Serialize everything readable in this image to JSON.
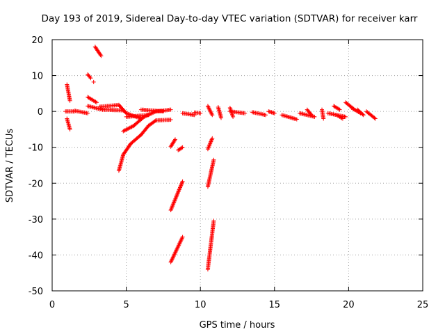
{
  "chart_data": {
    "type": "scatter",
    "title": "Day 193 of 2019, Sidereal Day-to-day VTEC variation (SDTVAR) for receiver karr",
    "xlabel": "GPS time / hours",
    "ylabel": "SDTVAR / TECUs",
    "xlim": [
      0,
      25
    ],
    "ylim": [
      -50,
      20
    ],
    "xticks": [
      0,
      5,
      10,
      15,
      20,
      25
    ],
    "yticks": [
      20,
      10,
      0,
      -10,
      -20,
      -30,
      -40,
      -50
    ],
    "xtick_labels": [
      "0",
      "5",
      "10",
      "15",
      "20",
      "25"
    ],
    "ytick_labels": [
      "20",
      "10",
      "0",
      "-10",
      "-20",
      "-30",
      "-40",
      "-50"
    ],
    "grid": true,
    "legend": "none",
    "marker": "plus",
    "color": "#ff0000",
    "segments": [
      {
        "x": [
          1.0,
          1.2
        ],
        "y": [
          7.5,
          3.0
        ]
      },
      {
        "x": [
          1.0,
          1.2
        ],
        "y": [
          -2.0,
          -5.0
        ]
      },
      {
        "x": [
          0.9,
          1.5
        ],
        "y": [
          0.0,
          0.0
        ]
      },
      {
        "x": [
          1.5,
          2.4
        ],
        "y": [
          0.2,
          -0.5
        ]
      },
      {
        "x": [
          2.4,
          2.6
        ],
        "y": [
          10.3,
          9.3
        ]
      },
      {
        "x": [
          2.8,
          2.8
        ],
        "y": [
          8.2,
          8.2
        ]
      },
      {
        "x": [
          2.9,
          3.3
        ],
        "y": [
          18.0,
          15.5
        ]
      },
      {
        "x": [
          2.4,
          3.0
        ],
        "y": [
          4.0,
          2.5
        ]
      },
      {
        "x": [
          2.4,
          3.4
        ],
        "y": [
          1.5,
          0.5
        ]
      },
      {
        "x": [
          3.2,
          4.5
        ],
        "y": [
          1.3,
          1.8
        ]
      },
      {
        "x": [
          4.5,
          5.0
        ],
        "y": [
          1.8,
          -0.5
        ]
      },
      {
        "x": [
          5.0,
          6.0
        ],
        "y": [
          -0.5,
          -2.0
        ]
      },
      {
        "x": [
          3.4,
          4.8
        ],
        "y": [
          0.5,
          0.3
        ]
      },
      {
        "x": [
          4.5,
          4.8
        ],
        "y": [
          -16.5,
          -12.0
        ]
      },
      {
        "x": [
          4.8,
          5.3
        ],
        "y": [
          -12.0,
          -9.0
        ]
      },
      {
        "x": [
          5.3,
          6.0
        ],
        "y": [
          -9.0,
          -6.5
        ]
      },
      {
        "x": [
          6.0,
          6.5
        ],
        "y": [
          -6.5,
          -4.0
        ]
      },
      {
        "x": [
          6.5,
          7.0
        ],
        "y": [
          -4.0,
          -2.5
        ]
      },
      {
        "x": [
          7.0,
          8.0
        ],
        "y": [
          -2.5,
          -2.3
        ]
      },
      {
        "x": [
          4.8,
          5.5
        ],
        "y": [
          -5.5,
          -4.0
        ]
      },
      {
        "x": [
          5.5,
          6.2
        ],
        "y": [
          -4.0,
          -1.5
        ]
      },
      {
        "x": [
          6.2,
          7.0
        ],
        "y": [
          -1.5,
          0.0
        ]
      },
      {
        "x": [
          7.0,
          8.0
        ],
        "y": [
          0.0,
          0.5
        ]
      },
      {
        "x": [
          5.0,
          6.5
        ],
        "y": [
          -1.5,
          -1.0
        ]
      },
      {
        "x": [
          6.0,
          7.5
        ],
        "y": [
          0.5,
          0.0
        ]
      },
      {
        "x": [
          8.0,
          8.3
        ],
        "y": [
          -9.8,
          -7.8
        ]
      },
      {
        "x": [
          8.5,
          8.8
        ],
        "y": [
          -10.8,
          -10.0
        ]
      },
      {
        "x": [
          8.0,
          8.8
        ],
        "y": [
          -27.5,
          -19.5
        ]
      },
      {
        "x": [
          8.0,
          8.8
        ],
        "y": [
          -42.0,
          -35.0
        ]
      },
      {
        "x": [
          8.8,
          9.6
        ],
        "y": [
          -0.5,
          -1.0
        ]
      },
      {
        "x": [
          9.6,
          10.0
        ],
        "y": [
          -0.3,
          -0.5
        ]
      },
      {
        "x": [
          10.5,
          10.8
        ],
        "y": [
          1.5,
          -1.0
        ]
      },
      {
        "x": [
          10.5,
          10.8
        ],
        "y": [
          -10.5,
          -7.5
        ]
      },
      {
        "x": [
          10.5,
          10.9
        ],
        "y": [
          -21.0,
          -13.5
        ]
      },
      {
        "x": [
          10.5,
          10.9
        ],
        "y": [
          -44.0,
          -30.5
        ]
      },
      {
        "x": [
          11.2,
          11.4
        ],
        "y": [
          1.2,
          -1.8
        ]
      },
      {
        "x": [
          12.0,
          12.2
        ],
        "y": [
          1.0,
          -1.5
        ]
      },
      {
        "x": [
          12.0,
          13.0
        ],
        "y": [
          0.0,
          -0.5
        ]
      },
      {
        "x": [
          13.5,
          14.4
        ],
        "y": [
          -0.2,
          -1.0
        ]
      },
      {
        "x": [
          14.6,
          15.0
        ],
        "y": [
          0.0,
          -0.5
        ]
      },
      {
        "x": [
          15.5,
          16.5
        ],
        "y": [
          -1.0,
          -2.2
        ]
      },
      {
        "x": [
          16.7,
          17.7
        ],
        "y": [
          -0.5,
          -1.5
        ]
      },
      {
        "x": [
          17.2,
          17.5
        ],
        "y": [
          0.5,
          -1.0
        ]
      },
      {
        "x": [
          18.2,
          18.3
        ],
        "y": [
          0.5,
          -2.0
        ]
      },
      {
        "x": [
          18.6,
          19.8
        ],
        "y": [
          -0.5,
          -1.5
        ]
      },
      {
        "x": [
          19.0,
          19.4
        ],
        "y": [
          1.5,
          0.5
        ]
      },
      {
        "x": [
          19.2,
          19.6
        ],
        "y": [
          -1.0,
          -2.0
        ]
      },
      {
        "x": [
          19.8,
          20.4
        ],
        "y": [
          2.5,
          0.5
        ]
      },
      {
        "x": [
          20.2,
          20.8
        ],
        "y": [
          1.0,
          -0.5
        ]
      },
      {
        "x": [
          20.6,
          21.0
        ],
        "y": [
          0.5,
          -1.0
        ]
      },
      {
        "x": [
          21.2,
          21.8
        ],
        "y": [
          0.0,
          -2.0
        ]
      }
    ]
  }
}
